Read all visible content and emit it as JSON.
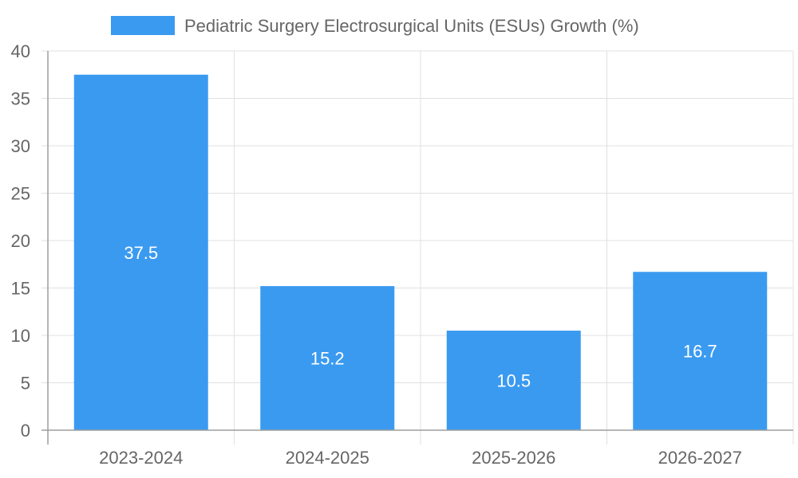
{
  "chart_data": {
    "type": "bar",
    "title": "",
    "xlabel": "",
    "ylabel": "",
    "categories": [
      "2023-2024",
      "2024-2025",
      "2025-2026",
      "2026-2027"
    ],
    "series": [
      {
        "name": "Pediatric Surgery Electrosurgical Units (ESUs) Growth (%)",
        "values": [
          37.5,
          15.2,
          10.5,
          16.7
        ],
        "color": "#3a9af0"
      }
    ],
    "ylim": [
      0,
      40
    ],
    "yticks": [
      0,
      5,
      10,
      15,
      20,
      25,
      30,
      35,
      40
    ],
    "grid": true,
    "legend_position": "top-center",
    "data_labels": [
      "37.5",
      "15.2",
      "10.5",
      "16.7"
    ]
  },
  "colors": {
    "bar": "#3a9af0",
    "grid": "#e0e0e0",
    "axis": "#9e9e9e",
    "text": "#666666",
    "label": "#ffffff"
  }
}
